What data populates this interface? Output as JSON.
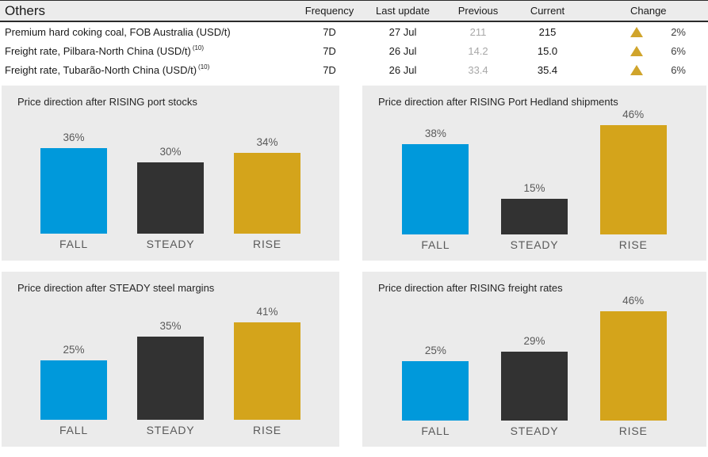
{
  "table": {
    "title": "Others",
    "columns": {
      "frequency": "Frequency",
      "last_update": "Last update",
      "previous": "Previous",
      "current": "Current",
      "change": "Change"
    },
    "rows": [
      {
        "name": "Premium hard coking coal, FOB Australia (USD/t)",
        "footnote": "",
        "frequency": "7D",
        "last_update": "27 Jul",
        "previous": "211",
        "current": "215",
        "change": "2%",
        "direction": "up"
      },
      {
        "name": "Freight rate, Pilbara-North China (USD/t)",
        "footnote": "(10)",
        "frequency": "7D",
        "last_update": "26 Jul",
        "previous": "14.2",
        "current": "15.0",
        "change": "6%",
        "direction": "up"
      },
      {
        "name": "Freight rate, Tubarão-North China (USD/t)",
        "footnote": "(10)",
        "frequency": "7D",
        "last_update": "26 Jul",
        "previous": "33.4",
        "current": "35.4",
        "change": "6%",
        "direction": "up"
      }
    ]
  },
  "colors": {
    "fall_bar": "#0099db",
    "steady_bar": "#323232",
    "rise_bar": "#d4a41b",
    "panel_background": "#ebebeb",
    "change_triangle": "#d0a42b",
    "previous_value_text": "#a8a8a8",
    "axis_label_text": "#595959"
  },
  "chart_data": [
    {
      "type": "bar",
      "title": "Price direction after RISING port stocks",
      "categories": [
        "FALL",
        "STEADY",
        "RISE"
      ],
      "values": [
        36,
        30,
        34
      ],
      "unit": "%",
      "ylim": [
        0,
        50
      ],
      "grid": false,
      "legend": "none",
      "bar_colors": [
        "#0099db",
        "#323232",
        "#d4a41b"
      ]
    },
    {
      "type": "bar",
      "title": "Price direction after RISING Port Hedland shipments",
      "categories": [
        "FALL",
        "STEADY",
        "RISE"
      ],
      "values": [
        38,
        15,
        46
      ],
      "unit": "%",
      "ylim": [
        0,
        50
      ],
      "grid": false,
      "legend": "none",
      "bar_colors": [
        "#0099db",
        "#323232",
        "#d4a41b"
      ]
    },
    {
      "type": "bar",
      "title": "Price direction after STEADY steel margins",
      "categories": [
        "FALL",
        "STEADY",
        "RISE"
      ],
      "values": [
        25,
        35,
        41
      ],
      "unit": "%",
      "ylim": [
        0,
        50
      ],
      "grid": false,
      "legend": "none",
      "bar_colors": [
        "#0099db",
        "#323232",
        "#d4a41b"
      ]
    },
    {
      "type": "bar",
      "title": "Price direction after RISING freight rates",
      "categories": [
        "FALL",
        "STEADY",
        "RISE"
      ],
      "values": [
        25,
        29,
        46
      ],
      "unit": "%",
      "ylim": [
        0,
        50
      ],
      "grid": false,
      "legend": "none",
      "bar_colors": [
        "#0099db",
        "#323232",
        "#d4a41b"
      ]
    }
  ]
}
